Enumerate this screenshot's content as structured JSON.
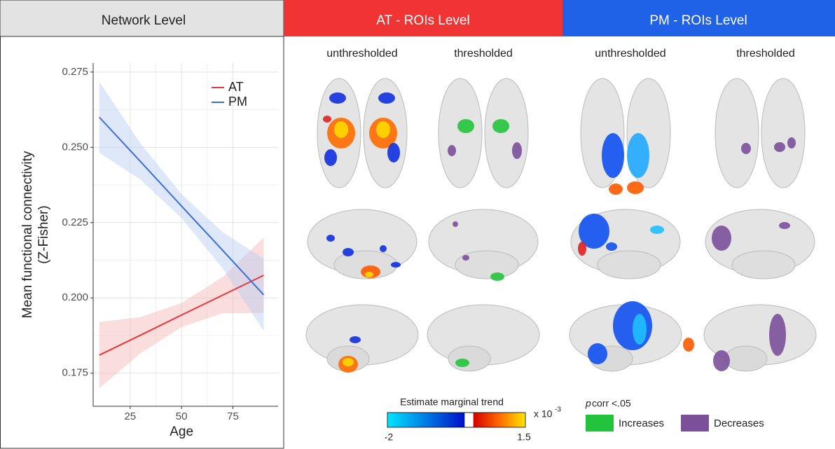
{
  "chart_data": {
    "type": "line",
    "xlabel": "Age",
    "ylabel": [
      "Mean functional connectivity",
      "(Z-Fisher)"
    ],
    "x": [
      10,
      30,
      50,
      70,
      90
    ],
    "series": [
      {
        "name": "AT",
        "color": "#e8393a",
        "band_color": "#f5b4b4",
        "values": [
          0.181,
          0.1876,
          0.1943,
          0.2009,
          0.2075
        ],
        "lower": [
          0.17,
          0.1816,
          0.1903,
          0.1949,
          0.195
        ],
        "upper": [
          0.192,
          0.1936,
          0.1983,
          0.2069,
          0.22
        ]
      },
      {
        "name": "PM",
        "color": "#3b6fd8",
        "band_color": "#b9cdf2",
        "values": [
          0.26,
          0.2453,
          0.2305,
          0.2158,
          0.201
        ],
        "lower": [
          0.2482,
          0.2393,
          0.2265,
          0.2098,
          0.189
        ],
        "upper": [
          0.2718,
          0.2513,
          0.2345,
          0.2218,
          0.213
        ]
      }
    ],
    "xlim": [
      7,
      97
    ],
    "ylim": [
      0.164,
      0.278
    ],
    "xticks": [
      25,
      50,
      75
    ],
    "yticks": [
      0.175,
      {
        "value": 0.2,
        "label": "0.200"
      },
      0.225,
      {
        "value": 0.25,
        "label": "0.250"
      },
      0.275
    ],
    "grid": true,
    "legend": "top-right"
  },
  "headers": [
    "Network Level",
    "AT - ROIs Level",
    "PM - ROIs Level"
  ],
  "columns": [
    "unthresholded",
    "thresholded",
    "unthresholded",
    "thresholded"
  ],
  "colorbar": {
    "title": "Estimate marginal trend",
    "multiplier": "x 10",
    "exponent": "-3",
    "min": -2,
    "max": 1.5
  },
  "significance": {
    "symbol": "p",
    "text": "corr <.05",
    "increases": "Increases",
    "decreases": "Decreases"
  }
}
